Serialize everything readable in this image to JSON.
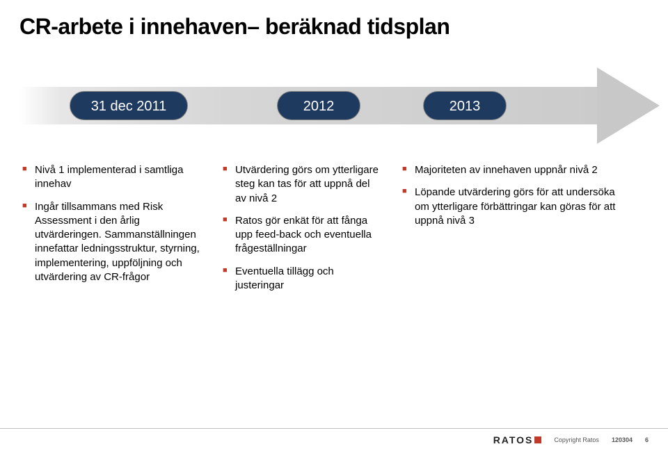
{
  "title": "CR-arbete i innehaven– beräknad tidsplan",
  "timeline": {
    "badges": [
      {
        "label": "31 dec 2011"
      },
      {
        "label": "2012"
      },
      {
        "label": "2013"
      }
    ],
    "arrow_color_start": "#ffffff",
    "arrow_color_end": "#c8c8c8",
    "badge_bg": "#1f3a5f",
    "badge_text_color": "#ffffff"
  },
  "columns": {
    "col1": {
      "items": [
        "Nivå 1 implementerad i samtliga innehav",
        "Ingår tillsammans med Risk Assessment i den årlig utvärderingen. Sammanställningen innefattar ledningsstruktur, styrning, implementering, uppföljning och utvärdering av CR-frågor"
      ]
    },
    "col2": {
      "items": [
        "Utvärdering görs om ytterligare steg kan tas för att uppnå del av nivå 2",
        "Ratos gör enkät för att fånga upp feed-back och eventuella frågeställningar",
        "Eventuella tillägg och justeringar"
      ]
    },
    "col3": {
      "items": [
        "Majoriteten av innehaven uppnår nivå 2",
        "Löpande utvärdering görs för att undersöka om ytterligare förbättringar kan göras för att uppnå nivå 3"
      ]
    }
  },
  "bullet_color": "#c03a2b",
  "footer": {
    "copyright": "Copyright Ratos",
    "date": "120304",
    "page": "6",
    "logo_text": "RATOS",
    "logo_accent": "#c03a2b"
  }
}
